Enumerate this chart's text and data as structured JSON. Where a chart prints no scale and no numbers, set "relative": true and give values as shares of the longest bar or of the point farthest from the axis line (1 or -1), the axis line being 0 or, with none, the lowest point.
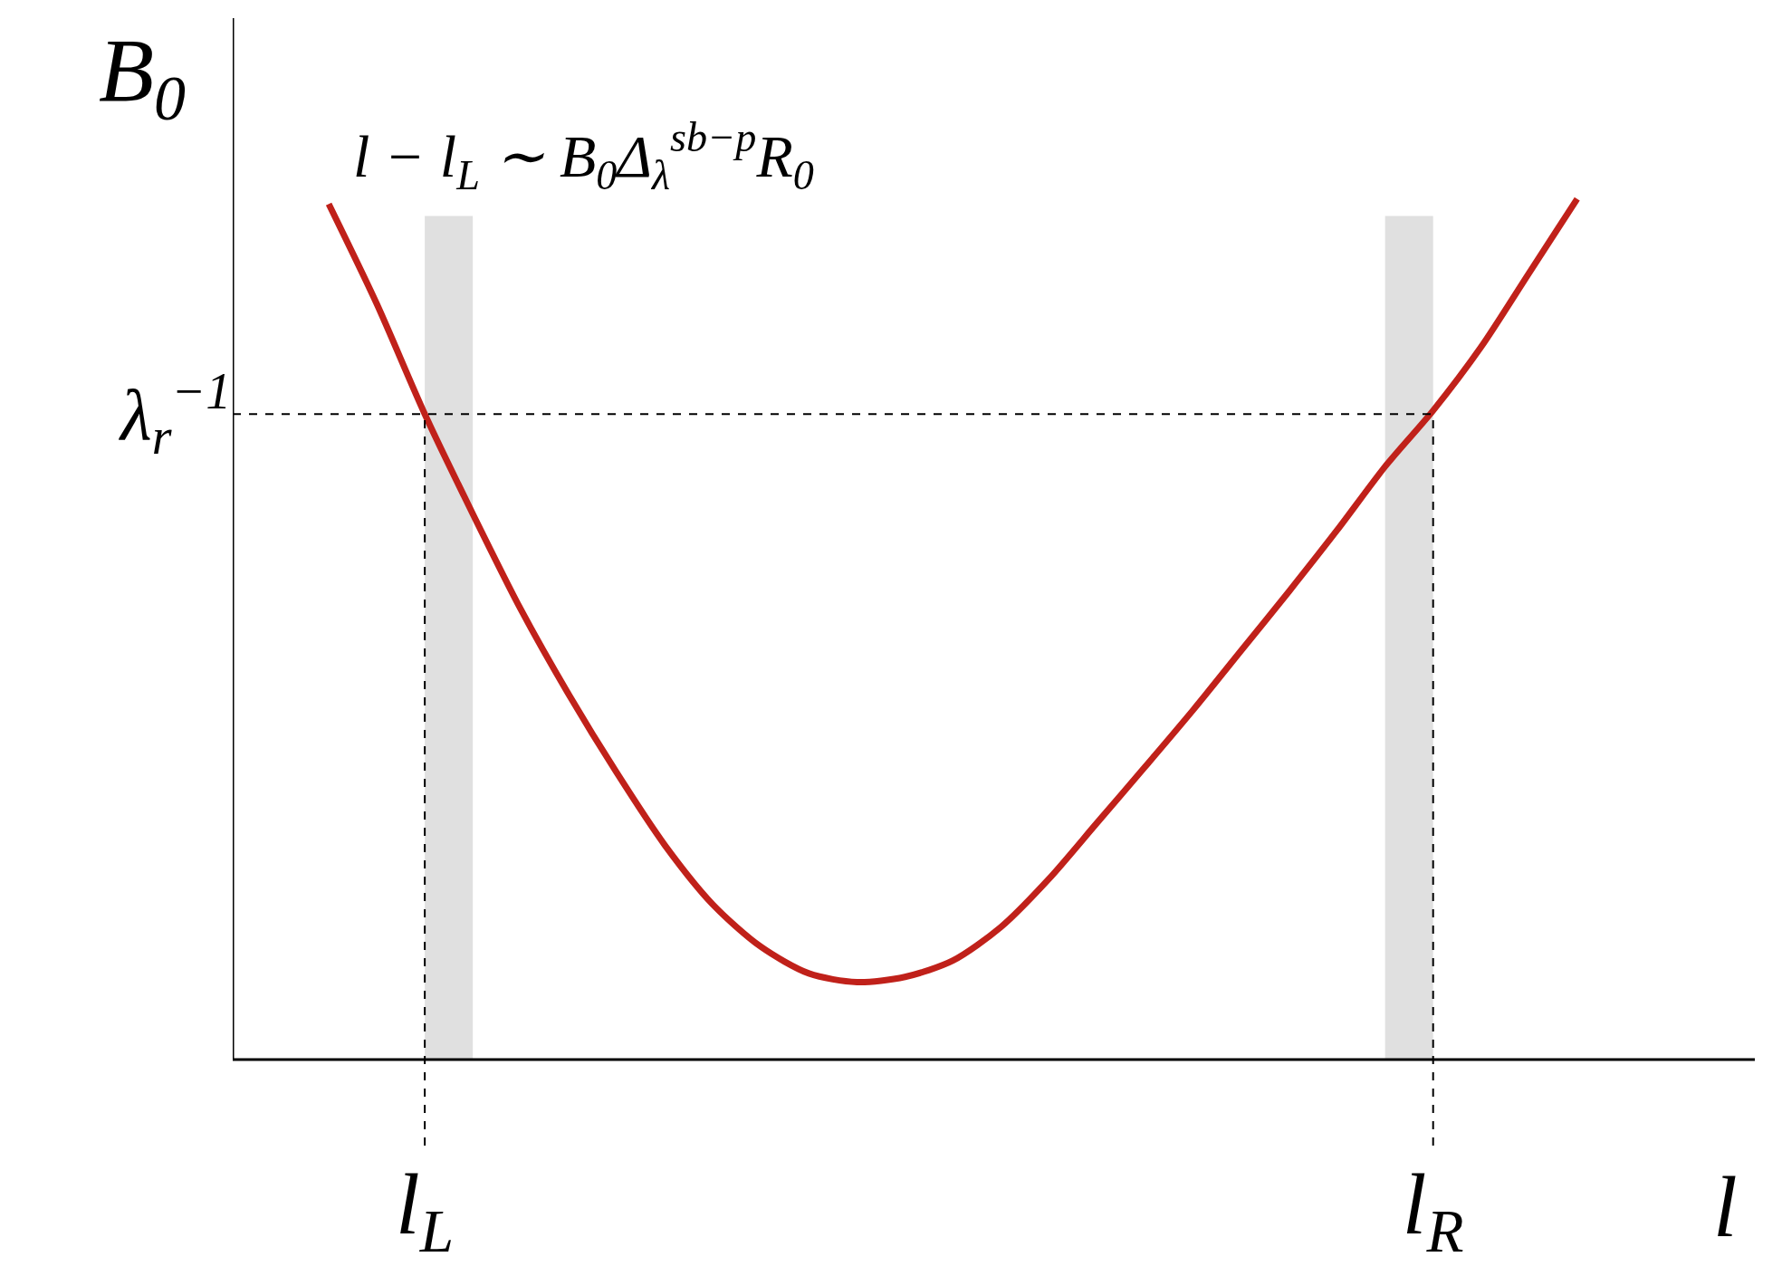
{
  "chart_data": {
    "type": "line",
    "relative": true,
    "ylabel": "B$_{0}$",
    "xlabel": "l",
    "annotations": [
      "l − l$_{L}$ ∼ B$_{0}$Δ$_{λ}$$^{sb−p}$R$_{0}$"
    ],
    "categories": [
      null,
      null,
      "l$_{L}$",
      null,
      null,
      null,
      null,
      null,
      null,
      null,
      null,
      null,
      null,
      null,
      null,
      null,
      null,
      null,
      null,
      null,
      null,
      null,
      null,
      "l$_{R}$",
      null,
      null,
      null
    ],
    "series": [
      {
        "type": "bar",
        "color": "#e0e0e0",
        "values": [
          null,
          null,
          0.98,
          null,
          null,
          null,
          null,
          null,
          null,
          null,
          null,
          null,
          null,
          null,
          null,
          null,
          null,
          null,
          null,
          null,
          null,
          null,
          null,
          0.98,
          null,
          null,
          null
        ]
      },
      {
        "color": "#c0211a",
        "values": [
          0.994,
          0.878,
          0.75,
          0.634,
          0.523,
          0.424,
          0.333,
          0.249,
          0.18,
          0.131,
          0.1,
          0.09,
          0.096,
          0.115,
          0.154,
          0.21,
          0.275,
          0.34,
          0.406,
          0.475,
          0.544,
          0.615,
          0.689,
          0.754,
          0.828,
          0.914,
          1.0
        ]
      }
    ],
    "ref_lines": [
      {
        "axis": "y",
        "value": 0.75,
        "label": "λ$_{r}$$^{−1}$",
        "line_style": "dashed",
        "color": "#000000"
      },
      {
        "axis": "x",
        "value": "l$_{L}$",
        "line_style": "dashed",
        "color": "#000000"
      },
      {
        "axis": "x",
        "value": "l$_{R}$",
        "line_style": "dashed",
        "color": "#000000"
      }
    ],
    "line_style": "solid",
    "marker": "none"
  }
}
